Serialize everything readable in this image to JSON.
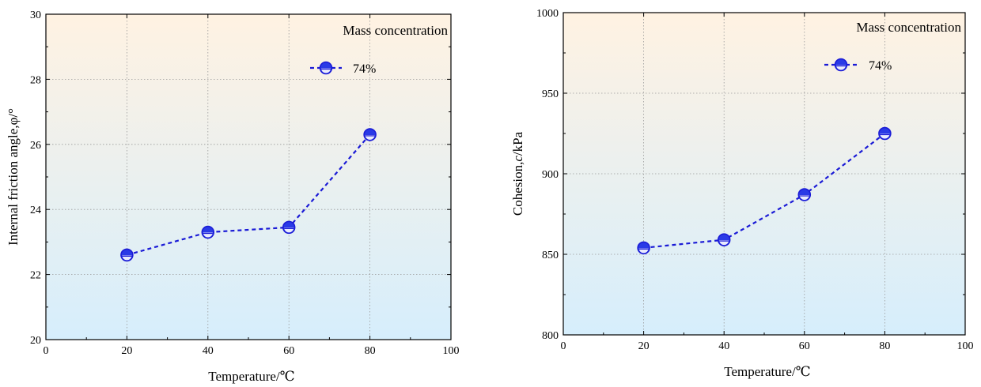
{
  "colors": {
    "series": "#1a1ad6",
    "marker_fill": "#2a3ae6",
    "bg_top": "#fff2e2",
    "bg_bottom": "#d6eefc",
    "grid": "#9a9a9a"
  },
  "chart_data": [
    {
      "type": "line",
      "x": [
        20,
        40,
        60,
        80
      ],
      "series": [
        {
          "name": "74%",
          "values": [
            22.6,
            23.3,
            23.45,
            26.3
          ]
        }
      ],
      "xlabel": "Temperature/℃",
      "ylabel": "Internal friction angle,φ/°",
      "xlim": [
        0,
        100
      ],
      "ylim": [
        20,
        30
      ],
      "xticks": [
        0,
        20,
        40,
        60,
        80,
        100
      ],
      "yticks": [
        20,
        22,
        24,
        26,
        28,
        30
      ],
      "legend_title": "Mass concentration",
      "legend_position": "top-right",
      "grid": true
    },
    {
      "type": "line",
      "x": [
        20,
        40,
        60,
        80
      ],
      "series": [
        {
          "name": "74%",
          "values": [
            854,
            859,
            887,
            925
          ]
        }
      ],
      "xlabel": "Temperature/℃",
      "ylabel_prefix": "Cohesion,",
      "ylabel_var": "c",
      "ylabel_suffix": "/kPa",
      "xlim": [
        0,
        100
      ],
      "ylim": [
        800,
        1000
      ],
      "xticks": [
        0,
        20,
        40,
        60,
        80,
        100
      ],
      "yticks": [
        800,
        850,
        900,
        950,
        1000
      ],
      "legend_title": "Mass concentration",
      "legend_position": "top-right",
      "grid": true
    }
  ]
}
